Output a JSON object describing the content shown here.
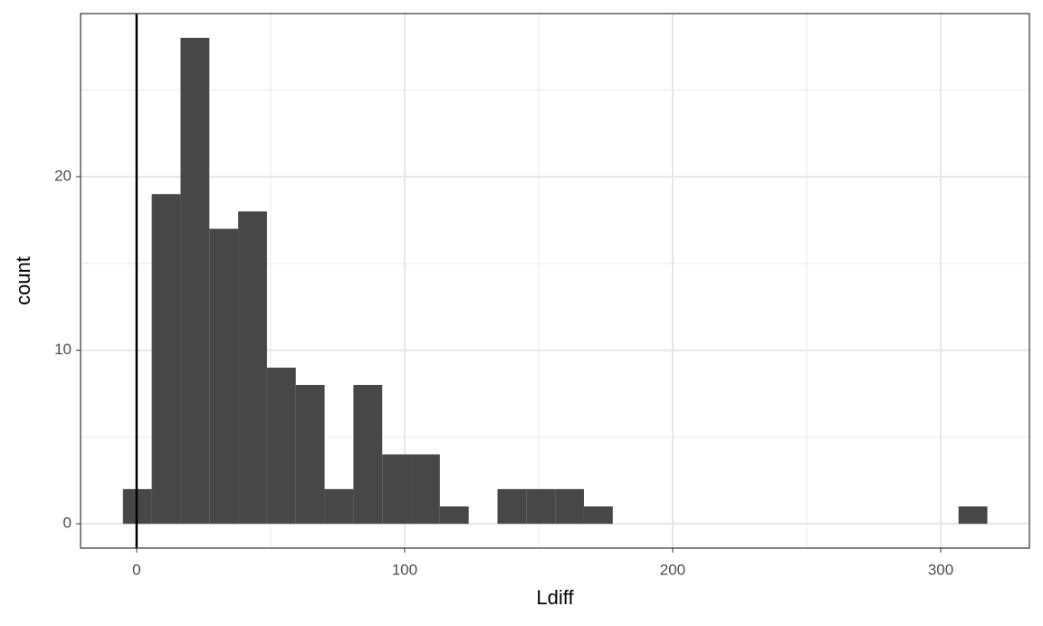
{
  "chart_data": {
    "type": "histogram",
    "x_label": "Ldiff",
    "y_label": "count",
    "bins": [
      -5.1,
      5.65,
      16.4,
      27.15,
      37.9,
      48.65,
      59.4,
      70.15,
      80.9,
      91.65,
      102.4,
      113.15,
      123.9,
      134.65,
      145.4,
      156.15,
      166.9,
      177.65,
      188.4,
      199.15,
      209.9,
      220.65,
      231.4,
      242.15,
      252.9,
      263.65,
      274.4,
      285.15,
      295.9,
      306.65,
      317.4
    ],
    "values": [
      2,
      19,
      28,
      17,
      18,
      9,
      8,
      2,
      8,
      4,
      4,
      1,
      0,
      2,
      2,
      2,
      1,
      0,
      0,
      0,
      0,
      0,
      0,
      0,
      0,
      0,
      0,
      0,
      0,
      1
    ],
    "color": "#474747",
    "xlim": [
      -20.9,
      333.1
    ],
    "ylim": [
      -1.4,
      29.4
    ],
    "xticks": [
      0,
      100,
      200,
      300
    ],
    "yticks": [
      0,
      10,
      20
    ],
    "x_minor_ticks": [
      50,
      150,
      250
    ],
    "y_minor_ticks": [
      5,
      15,
      25
    ],
    "vline": 0,
    "grid": true
  }
}
